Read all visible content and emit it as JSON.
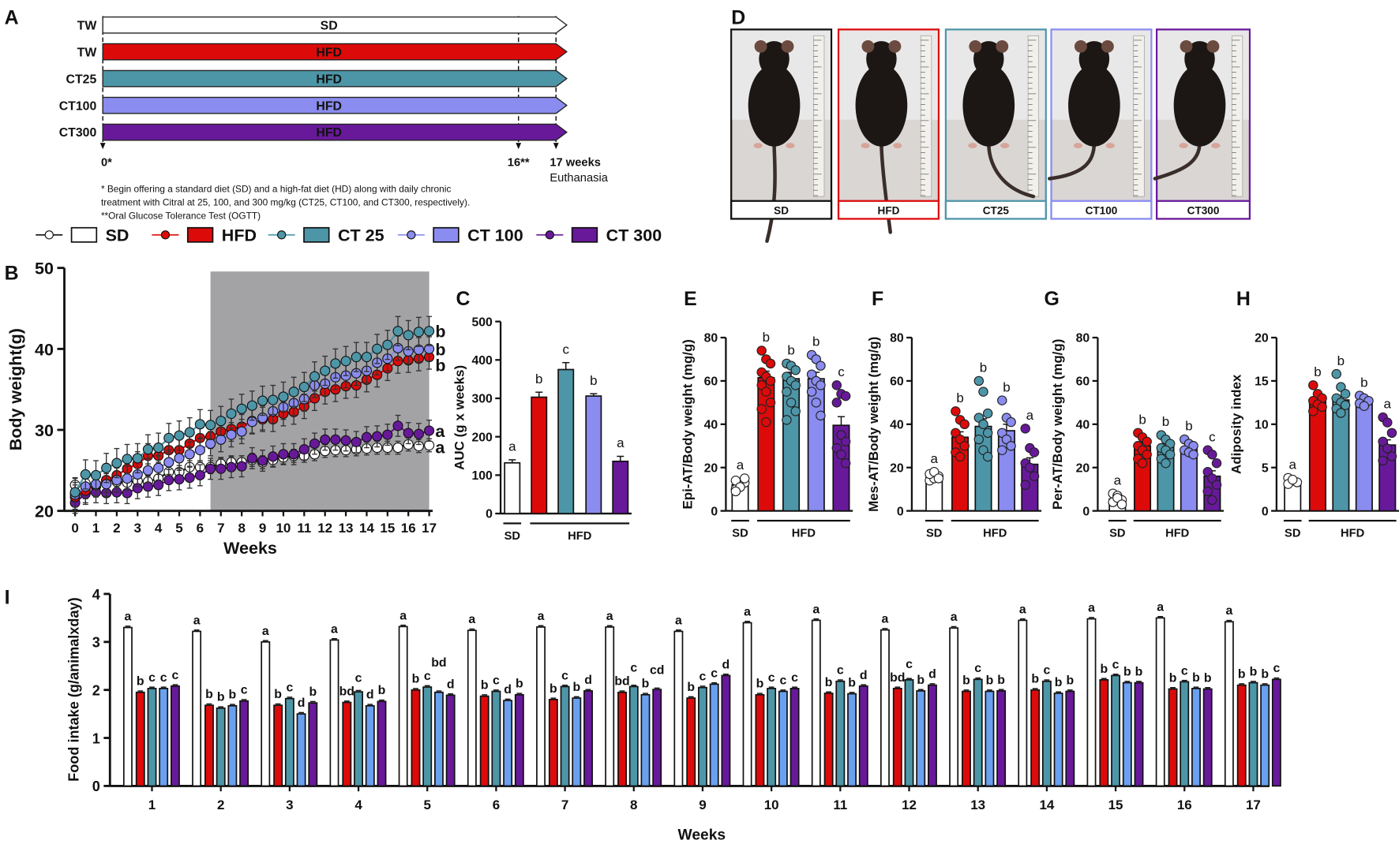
{
  "colors": {
    "SD": "#ffffff",
    "HFD": "#dd0a0a",
    "CT25": "#4d96a8",
    "CT100": "#8a8cf0",
    "CT100_intake": "#6aa0f0",
    "CT300": "#68199a",
    "shade": "#a3a3a6"
  },
  "panel_labels": {
    "A": "A",
    "B": "B",
    "C": "C",
    "D": "D",
    "E": "E",
    "F": "F",
    "G": "G",
    "H": "H",
    "I": "I"
  },
  "timeline": {
    "rows": [
      {
        "group": "TW",
        "diet": "SD"
      },
      {
        "group": "TW",
        "diet": "HFD"
      },
      {
        "group": "CT25",
        "diet": "HFD"
      },
      {
        "group": "CT100",
        "diet": "HFD"
      },
      {
        "group": "CT300",
        "diet": "HFD"
      }
    ],
    "markers": {
      "start": "0*",
      "ogtt": "16**",
      "end": "17 weeks",
      "end_sub": "Euthanasia"
    },
    "footnotes": [
      "* Begin offering a standard diet (SD) and a high-fat diet (HD) along with daily chronic",
      "treatment with Citral at 25, 100, and 300 mg/kg (CT25, CT100, and CT300, respectively).",
      "**Oral Glucose Tolerance Test (OGTT)"
    ]
  },
  "legend": [
    {
      "label": "SD"
    },
    {
      "label": "HFD"
    },
    {
      "label": "CT 25"
    },
    {
      "label": "CT 100"
    },
    {
      "label": "CT 300"
    }
  ],
  "photos": {
    "labels": [
      "SD",
      "HFD",
      "CT25",
      "CT100",
      "CT300"
    ]
  },
  "group_labels": {
    "sd": "SD",
    "hfd": "HFD"
  },
  "chart_data": [
    {
      "type": "line",
      "panel": "B",
      "title": "",
      "xlabel": "Weeks",
      "ylabel": "Body weight(g)",
      "xlim": [
        0,
        17
      ],
      "ylim": [
        20,
        50
      ],
      "yticks": [
        20,
        30,
        40,
        50
      ],
      "xticks": [
        0,
        1,
        2,
        3,
        4,
        5,
        6,
        7,
        8,
        9,
        10,
        11,
        12,
        13,
        14,
        15,
        16,
        17
      ],
      "x_step": 0.5,
      "shaded_weeks": [
        6.5,
        17
      ],
      "series": [
        {
          "name": "SD",
          "sem": 0.8,
          "letter": "a",
          "values": [
            23.2,
            23.4,
            23.0,
            23.8,
            23.6,
            23.5,
            23.7,
            23.6,
            24.0,
            24.8,
            24.8,
            25.4,
            25.4,
            25.4,
            25.8,
            26.0,
            26.0,
            26.3,
            26.0,
            26.3,
            26.6,
            26.8,
            26.8,
            27.0,
            27.4,
            27.5,
            27.5,
            27.6,
            27.7,
            27.8,
            27.8,
            27.8,
            28.2,
            28.0,
            28.1
          ]
        },
        {
          "name": "CT300",
          "sem": 1.3,
          "letter": "a",
          "values": [
            21.0,
            22.1,
            22.3,
            22.2,
            22.3,
            22.2,
            22.8,
            23.0,
            23.2,
            23.8,
            23.9,
            24.1,
            24.4,
            25.2,
            25.2,
            25.4,
            25.5,
            26.5,
            26.2,
            26.7,
            27.0,
            27.0,
            27.6,
            28.3,
            28.8,
            28.8,
            28.7,
            28.5,
            29.1,
            29.2,
            29.4,
            30.5,
            29.6,
            29.5,
            29.9
          ]
        },
        {
          "name": "HFD",
          "sem": 1.5,
          "letter": "b",
          "values": [
            21.7,
            22.5,
            23.2,
            23.8,
            24.4,
            25.2,
            25.8,
            26.8,
            26.8,
            27.5,
            27.5,
            28.3,
            29.0,
            29.2,
            29.8,
            30.1,
            30.4,
            31.1,
            31.3,
            31.3,
            32.0,
            32.2,
            32.9,
            33.9,
            34.7,
            35.0,
            35.4,
            35.5,
            36.2,
            36.8,
            37.6,
            38.5,
            38.6,
            38.8,
            39.0
          ]
        },
        {
          "name": "CT100",
          "sem": 1.5,
          "letter": "b",
          "values": [
            22.0,
            23.0,
            23.3,
            23.3,
            23.8,
            24.0,
            24.5,
            25.0,
            25.3,
            26.0,
            26.5,
            27.0,
            27.5,
            28.3,
            28.8,
            29.4,
            29.8,
            31.0,
            31.5,
            32.3,
            32.8,
            33.3,
            33.8,
            35.5,
            35.7,
            36.5,
            36.7,
            37.0,
            37.3,
            38.3,
            38.8,
            40.1,
            39.7,
            39.9,
            40.0
          ]
        },
        {
          "name": "CT25",
          "sem": 1.8,
          "letter": "b",
          "values": [
            22.3,
            24.5,
            24.4,
            25.3,
            25.9,
            26.4,
            26.5,
            27.6,
            27.8,
            29.0,
            29.3,
            29.7,
            30.7,
            30.6,
            31.1,
            32.0,
            32.6,
            33.0,
            33.6,
            33.7,
            34.1,
            34.7,
            35.3,
            36.6,
            37.3,
            38.2,
            38.5,
            39.0,
            39.0,
            40.0,
            40.5,
            42.2,
            41.7,
            42.1,
            42.2
          ]
        }
      ]
    },
    {
      "type": "bar",
      "panel": "C",
      "ylabel": "AUC (g x weeks)",
      "ylim": [
        0,
        500
      ],
      "yticks": [
        0,
        100,
        200,
        300,
        400,
        500
      ],
      "categories": [
        "SD",
        "HFD",
        "CT25",
        "CT100",
        "CT300"
      ],
      "values": [
        132,
        303,
        375,
        306,
        136
      ],
      "sem": [
        8,
        13,
        18,
        6,
        13
      ],
      "letters": [
        "a",
        "b",
        "c",
        "b",
        "a"
      ]
    },
    {
      "type": "bar",
      "panel": "E",
      "ylabel": "Epi-AT/Body weight (mg/g)",
      "ylim": [
        0,
        80
      ],
      "yticks": [
        0,
        20,
        40,
        60,
        80
      ],
      "categories": [
        "SD",
        "HFD",
        "CT25",
        "CT100",
        "CT300"
      ],
      "values": [
        12,
        61.5,
        61,
        61,
        39.5
      ],
      "sem": [
        1,
        3,
        3,
        3,
        4
      ],
      "letters": [
        "a",
        "b",
        "b",
        "b",
        "c"
      ],
      "points": [
        [
          10,
          12,
          13,
          14,
          11,
          15,
          9
        ],
        [
          74,
          70,
          68,
          64,
          62,
          60,
          58,
          55,
          50,
          47,
          41
        ],
        [
          68,
          67,
          65,
          62,
          60,
          58,
          55,
          50,
          46,
          42
        ],
        [
          72,
          70,
          67,
          63,
          60,
          58,
          55,
          50,
          44
        ],
        [
          58,
          54,
          53,
          50,
          35,
          32,
          29,
          26,
          22
        ]
      ]
    },
    {
      "type": "bar",
      "panel": "F",
      "ylabel": "Mes-AT/Body weight (mg/g)",
      "ylim": [
        0,
        80
      ],
      "yticks": [
        0,
        20,
        40,
        60,
        80
      ],
      "categories": [
        "SD",
        "HFD",
        "CT25",
        "CT100",
        "CT300"
      ],
      "values": [
        16,
        34,
        39,
        37,
        21.5
      ],
      "sem": [
        1,
        2.5,
        3.5,
        3,
        3
      ],
      "letters": [
        "a",
        "b",
        "b",
        "b",
        "a"
      ],
      "points": [
        [
          14,
          15,
          16,
          17,
          18,
          15
        ],
        [
          46,
          42,
          40,
          36,
          33,
          30,
          27,
          25
        ],
        [
          60,
          55,
          45,
          43,
          40,
          36,
          33,
          28,
          25
        ],
        [
          51,
          43,
          41,
          36,
          33,
          30,
          28
        ],
        [
          38,
          29,
          27,
          22,
          20,
          16,
          12
        ]
      ]
    },
    {
      "type": "bar",
      "panel": "G",
      "ylabel": "Per-AT/Body weight (mg/g)",
      "ylim": [
        0,
        80
      ],
      "yticks": [
        0,
        20,
        40,
        60,
        80
      ],
      "categories": [
        "SD",
        "HFD",
        "CT25",
        "CT100",
        "CT300"
      ],
      "values": [
        5.5,
        30,
        29.5,
        29,
        16
      ],
      "sem": [
        0.8,
        1.5,
        1.5,
        1,
        2.5
      ],
      "letters": [
        "a",
        "b",
        "b",
        "b",
        "c"
      ],
      "points": [
        [
          8,
          7,
          5,
          4,
          6,
          3
        ],
        [
          36,
          34,
          32,
          30,
          28,
          26,
          24,
          22
        ],
        [
          35,
          33,
          31,
          29,
          28,
          26,
          24,
          22
        ],
        [
          33,
          31,
          30,
          28,
          27,
          26
        ],
        [
          28,
          26,
          22,
          18,
          15,
          12,
          9,
          5
        ]
      ]
    },
    {
      "type": "bar",
      "panel": "H",
      "ylabel": "Adiposity index",
      "ylim": [
        0,
        20
      ],
      "yticks": [
        0,
        5,
        10,
        15,
        20
      ],
      "categories": [
        "SD",
        "HFD",
        "CT25",
        "CT100",
        "CT300"
      ],
      "values": [
        3.3,
        12.8,
        12.8,
        12.7,
        7.6
      ],
      "sem": [
        0.2,
        0.4,
        0.4,
        0.2,
        0.6
      ],
      "letters": [
        "a",
        "b",
        "b",
        "b",
        "a"
      ],
      "points": [
        [
          3.8,
          3.5,
          3.3,
          3.1,
          3.6
        ],
        [
          14.5,
          13.5,
          13.0,
          12.7,
          12.3,
          12.0,
          11.5
        ],
        [
          15.8,
          14.3,
          13.5,
          13.0,
          12.5,
          12.2,
          11.8,
          11.3
        ],
        [
          13.3,
          13.0,
          12.7,
          12.4,
          12.1
        ],
        [
          10.8,
          10.2,
          9.0,
          8.0,
          7.2,
          6.3,
          5.8
        ]
      ]
    },
    {
      "type": "bar",
      "panel": "I",
      "xlabel": "Weeks",
      "ylabel": "Food intake (g/animalxday)",
      "ylim": [
        0,
        4
      ],
      "yticks": [
        0,
        1,
        2,
        3,
        4
      ],
      "categories": [
        "1",
        "2",
        "3",
        "4",
        "5",
        "6",
        "7",
        "8",
        "9",
        "10",
        "11",
        "12",
        "13",
        "14",
        "15",
        "16",
        "17"
      ],
      "series": [
        {
          "name": "SD",
          "values": [
            3.3,
            3.22,
            3.0,
            3.04,
            3.32,
            3.24,
            3.31,
            3.31,
            3.22,
            3.4,
            3.45,
            3.25,
            3.29,
            3.45,
            3.48,
            3.5,
            3.42
          ]
        },
        {
          "name": "HFD",
          "values": [
            1.95,
            1.68,
            1.68,
            1.74,
            2.0,
            1.87,
            1.8,
            1.95,
            1.83,
            1.9,
            1.93,
            2.03,
            1.97,
            2.0,
            2.21,
            2.02,
            2.1
          ]
        },
        {
          "name": "CT25",
          "values": [
            2.03,
            1.62,
            1.82,
            1.96,
            2.06,
            1.97,
            2.07,
            2.07,
            2.05,
            2.03,
            2.18,
            2.21,
            2.22,
            2.18,
            2.3,
            2.17,
            2.15
          ]
        },
        {
          "name": "CT100",
          "values": [
            2.03,
            1.67,
            1.5,
            1.67,
            1.95,
            1.78,
            1.83,
            1.9,
            2.12,
            1.97,
            1.92,
            1.98,
            1.97,
            1.93,
            2.15,
            2.03,
            2.1
          ]
        },
        {
          "name": "CT300",
          "values": [
            2.08,
            1.77,
            1.73,
            1.76,
            1.89,
            1.9,
            1.98,
            2.01,
            2.3,
            2.03,
            2.08,
            2.1,
            1.98,
            1.97,
            2.15,
            2.02,
            2.22
          ]
        }
      ],
      "letters": [
        [
          "a",
          "b",
          "c",
          "c",
          "c"
        ],
        [
          "a",
          "b",
          "b",
          "b",
          "c"
        ],
        [
          "a",
          "b",
          "c",
          "d",
          "b"
        ],
        [
          "a",
          "bd",
          "c",
          "d",
          "b"
        ],
        [
          "a",
          "b",
          "c",
          "bd",
          "d"
        ],
        [
          "a",
          "b",
          "c",
          "d",
          "b"
        ],
        [
          "a",
          "b",
          "c",
          "b",
          "d"
        ],
        [
          "a",
          "bd",
          "c",
          "b",
          "cd"
        ],
        [
          "a",
          "b",
          "c",
          "c",
          "d"
        ],
        [
          "a",
          "b",
          "c",
          "c",
          "c"
        ],
        [
          "a",
          "b",
          "c",
          "b",
          "d"
        ],
        [
          "a",
          "bd",
          "c",
          "b",
          "d"
        ],
        [
          "a",
          "b",
          "c",
          "b",
          "b"
        ],
        [
          "a",
          "b",
          "c",
          "b",
          "b"
        ],
        [
          "a",
          "b",
          "c",
          "b",
          "b"
        ],
        [
          "a",
          "b",
          "c",
          "b",
          "b"
        ],
        [
          "a",
          "b",
          "b",
          "b",
          "c"
        ]
      ]
    }
  ]
}
